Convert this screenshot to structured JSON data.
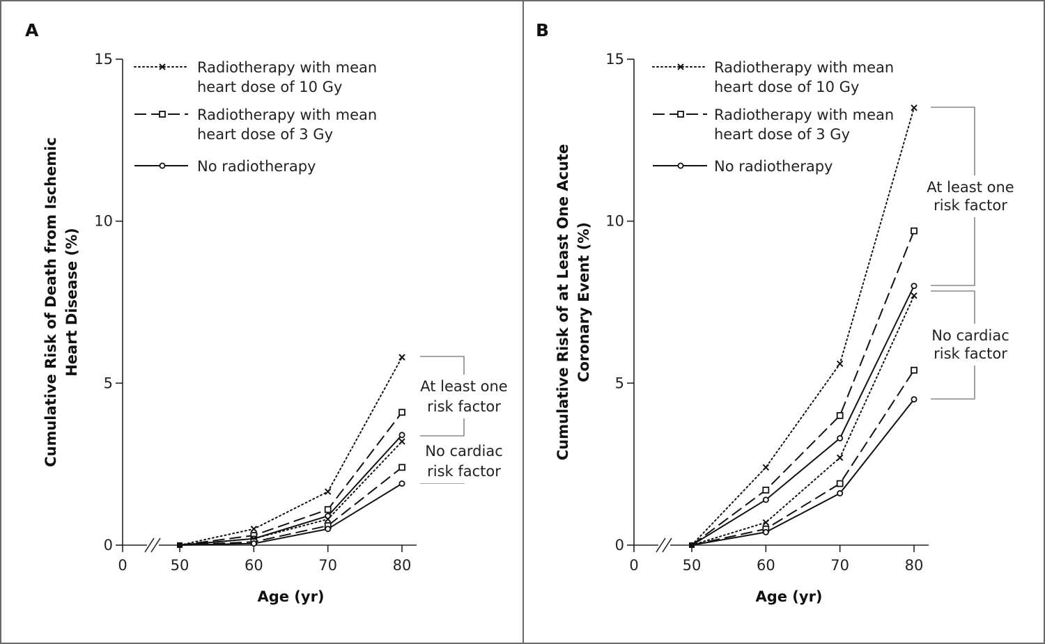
{
  "chart_data": [
    {
      "panel": "A",
      "type": "line",
      "xlabel": "Age (yr)",
      "ylabel_lines": [
        "Cumulative Risk of Death from Ischemic",
        "Heart Disease (%)"
      ],
      "xticks": [
        "0",
        "50",
        "60",
        "70",
        "80"
      ],
      "yticks": [
        "0",
        "5",
        "10",
        "15"
      ],
      "ylim": [
        0,
        15
      ],
      "x": [
        50,
        60,
        70,
        80
      ],
      "legend": [
        {
          "style": "dotted",
          "marker": "x",
          "lines": [
            "Radiotherapy with mean",
            "heart dose of 10 Gy"
          ]
        },
        {
          "style": "dashed",
          "marker": "square",
          "lines": [
            "Radiotherapy with mean",
            "heart dose of 3 Gy"
          ]
        },
        {
          "style": "solid",
          "marker": "circle",
          "lines": [
            "No radiotherapy"
          ]
        }
      ],
      "groups": [
        {
          "lines": [
            "At least one",
            "risk factor"
          ]
        },
        {
          "lines": [
            "No cardiac",
            "risk factor"
          ]
        }
      ],
      "series": [
        {
          "group": 0,
          "style": "dotted",
          "marker": "x",
          "values": [
            0,
            0.5,
            1.65,
            5.8
          ]
        },
        {
          "group": 0,
          "style": "dashed",
          "marker": "square",
          "values": [
            0,
            0.3,
            1.1,
            4.1
          ]
        },
        {
          "group": 0,
          "style": "solid",
          "marker": "circle",
          "values": [
            0,
            0.2,
            0.9,
            3.4
          ]
        },
        {
          "group": 1,
          "style": "dotted",
          "marker": "x",
          "values": [
            0,
            0.2,
            0.8,
            3.2
          ]
        },
        {
          "group": 1,
          "style": "dashed",
          "marker": "square",
          "values": [
            0,
            0.1,
            0.6,
            2.4
          ]
        },
        {
          "group": 1,
          "style": "solid",
          "marker": "circle",
          "values": [
            0,
            0.05,
            0.5,
            1.9
          ]
        }
      ]
    },
    {
      "panel": "B",
      "type": "line",
      "xlabel": "Age (yr)",
      "ylabel_lines": [
        "Cumulative Risk of at Least One Acute",
        "Coronary Event (%)"
      ],
      "xticks": [
        "0",
        "50",
        "60",
        "70",
        "80"
      ],
      "yticks": [
        "0",
        "5",
        "10",
        "15"
      ],
      "ylim": [
        0,
        15
      ],
      "x": [
        50,
        60,
        70,
        80
      ],
      "legend": [
        {
          "style": "dotted",
          "marker": "x",
          "lines": [
            "Radiotherapy with mean",
            "heart dose of 10 Gy"
          ]
        },
        {
          "style": "dashed",
          "marker": "square",
          "lines": [
            "Radiotherapy with mean",
            "heart dose of 3 Gy"
          ]
        },
        {
          "style": "solid",
          "marker": "circle",
          "lines": [
            "No radiotherapy"
          ]
        }
      ],
      "groups": [
        {
          "lines": [
            "At least one",
            "risk factor"
          ]
        },
        {
          "lines": [
            "No cardiac",
            "risk factor"
          ]
        }
      ],
      "series": [
        {
          "group": 0,
          "style": "dotted",
          "marker": "x",
          "values": [
            0,
            2.4,
            5.6,
            13.5
          ]
        },
        {
          "group": 0,
          "style": "dashed",
          "marker": "square",
          "values": [
            0,
            1.7,
            4.0,
            9.7
          ]
        },
        {
          "group": 0,
          "style": "solid",
          "marker": "circle",
          "values": [
            0,
            1.4,
            3.3,
            8.0
          ]
        },
        {
          "group": 1,
          "style": "dotted",
          "marker": "x",
          "values": [
            0,
            0.7,
            2.7,
            7.7
          ]
        },
        {
          "group": 1,
          "style": "dashed",
          "marker": "square",
          "values": [
            0,
            0.5,
            1.9,
            5.4
          ]
        },
        {
          "group": 1,
          "style": "solid",
          "marker": "circle",
          "values": [
            0,
            0.4,
            1.6,
            4.5
          ]
        }
      ]
    }
  ]
}
